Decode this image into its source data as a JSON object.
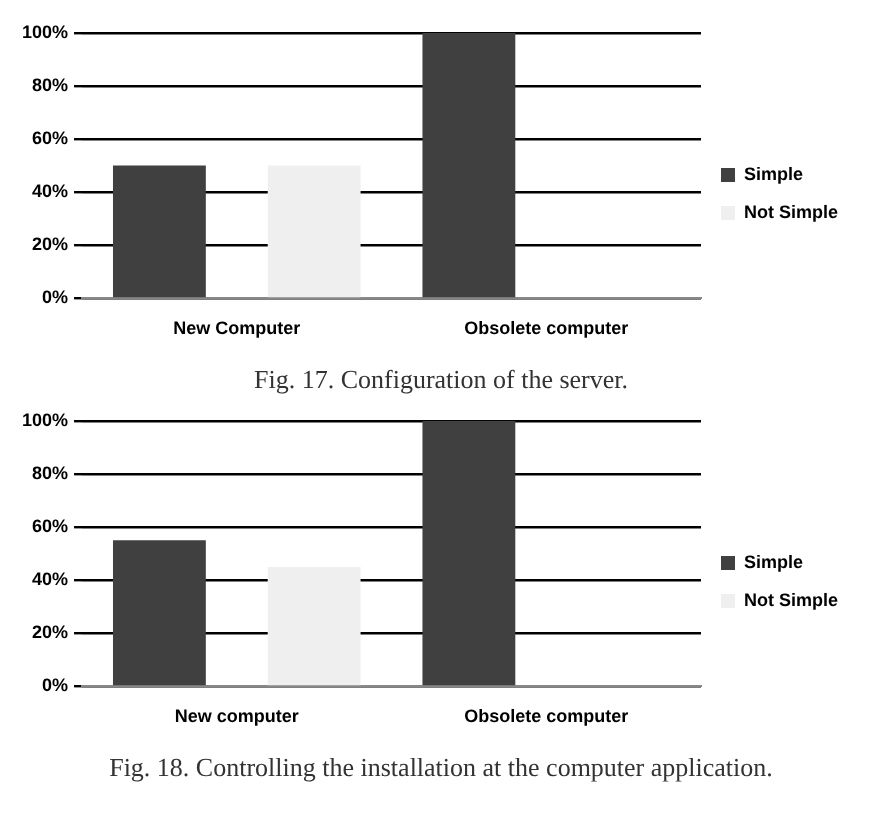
{
  "chart_data": [
    {
      "type": "bar",
      "categories": [
        "New Computer",
        "Obsolete computer"
      ],
      "series": [
        {
          "name": "Simple",
          "color": "#404040",
          "values": [
            50,
            100
          ]
        },
        {
          "name": "Not Simple",
          "color": "#efefef",
          "values": [
            50,
            0
          ]
        }
      ],
      "ylim": [
        0,
        100
      ],
      "yticks": [
        {
          "value": 0,
          "label": "0%"
        },
        {
          "value": 20,
          "label": "20%"
        },
        {
          "value": 40,
          "label": "40%"
        },
        {
          "value": 60,
          "label": "60%"
        },
        {
          "value": 80,
          "label": "80%"
        },
        {
          "value": 100,
          "label": "100%"
        }
      ],
      "grid": "y",
      "legend": "right",
      "annotations": [
        "Fig. 17. Configuration of the server."
      ]
    },
    {
      "type": "bar",
      "categories": [
        "New computer",
        "Obsolete computer"
      ],
      "series": [
        {
          "name": "Simple",
          "color": "#404040",
          "values": [
            55,
            100
          ]
        },
        {
          "name": "Not Simple",
          "color": "#efefef",
          "values": [
            45,
            0
          ]
        }
      ],
      "ylim": [
        0,
        100
      ],
      "yticks": [
        {
          "value": 0,
          "label": "0%"
        },
        {
          "value": 20,
          "label": "20%"
        },
        {
          "value": 40,
          "label": "40%"
        },
        {
          "value": 60,
          "label": "60%"
        },
        {
          "value": 80,
          "label": "80%"
        },
        {
          "value": 100,
          "label": "100%"
        }
      ],
      "grid": "y",
      "legend": "right",
      "annotations": [
        "Fig. 18. Controlling the installation at the computer application."
      ]
    }
  ]
}
